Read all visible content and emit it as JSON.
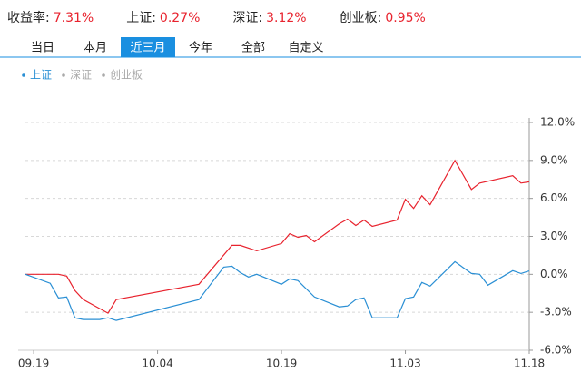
{
  "header": {
    "stats": [
      {
        "label": "收益率:",
        "value": "7.31%"
      },
      {
        "label": "上证:",
        "value": "0.27%"
      },
      {
        "label": "深证:",
        "value": "3.12%"
      },
      {
        "label": "创业板:",
        "value": "0.95%"
      }
    ]
  },
  "tabs": [
    "当日",
    "本月",
    "近三月",
    "今年",
    "全部",
    "自定义"
  ],
  "active_tab": 2,
  "chart_data": {
    "type": "line",
    "series": [
      {
        "color": "#e8232e",
        "x": [
          -1,
          3,
          4,
          5,
          6,
          9,
          10,
          20,
          24,
          25,
          27,
          30,
          31,
          32,
          33,
          34,
          37,
          38,
          39,
          40,
          41,
          44,
          45,
          46,
          47,
          48,
          51,
          53,
          54,
          58,
          59,
          60
        ],
        "values": [
          0,
          0,
          -0.14,
          -1.29,
          -2,
          -3.07,
          -2,
          -0.79,
          2.29,
          2.29,
          1.86,
          2.43,
          3.21,
          2.93,
          3.07,
          2.57,
          4,
          4.36,
          3.86,
          4.29,
          3.79,
          4.29,
          5.93,
          5.21,
          6.21,
          5.5,
          9,
          6.71,
          7.21,
          7.79,
          7.21,
          7.31
        ]
      },
      {
        "name": "上证",
        "color": "#2a8fd4",
        "x": [
          -1,
          2,
          3,
          4,
          5,
          6,
          8,
          9,
          10,
          20,
          23,
          24,
          25,
          26,
          27,
          30,
          31,
          32,
          34,
          37,
          38,
          39,
          40,
          41,
          44,
          45,
          46,
          47,
          48,
          51,
          53,
          54,
          55,
          58,
          59,
          60
        ],
        "values": [
          0,
          -0.71,
          -1.86,
          -1.79,
          -3.43,
          -3.57,
          -3.57,
          -3.43,
          -3.64,
          -2,
          0.57,
          0.64,
          0.14,
          -0.21,
          0,
          -0.79,
          -0.36,
          -0.5,
          -1.79,
          -2.57,
          -2.5,
          -2,
          -1.86,
          -3.43,
          -3.43,
          -1.93,
          -1.79,
          -0.64,
          -0.93,
          1,
          0.07,
          0,
          -0.86,
          0.29,
          0.07,
          0.27
        ]
      }
    ],
    "inactive_legend": [
      {
        "name": "深证",
        "color": "#aaaaaa"
      },
      {
        "name": "创业板",
        "color": "#aaaaaa"
      }
    ],
    "xlim": [
      -1,
      60
    ],
    "xticks": [
      {
        "value": 0,
        "label": "09.19"
      },
      {
        "value": 15,
        "label": "10.04"
      },
      {
        "value": 30,
        "label": "10.19"
      },
      {
        "value": 45,
        "label": "11.03"
      },
      {
        "value": 60,
        "label": "11.18"
      }
    ],
    "ylim": [
      -6,
      12
    ],
    "yticks": [
      {
        "value": 12,
        "label": "12.0%"
      },
      {
        "value": 9,
        "label": "9.0%"
      },
      {
        "value": 6,
        "label": "6.0%"
      },
      {
        "value": 3,
        "label": "3.0%"
      },
      {
        "value": 0,
        "label": "0.0%"
      },
      {
        "value": -3,
        "label": "-3.0%"
      },
      {
        "value": -6,
        "label": "-6.0%"
      }
    ],
    "grid": true
  }
}
